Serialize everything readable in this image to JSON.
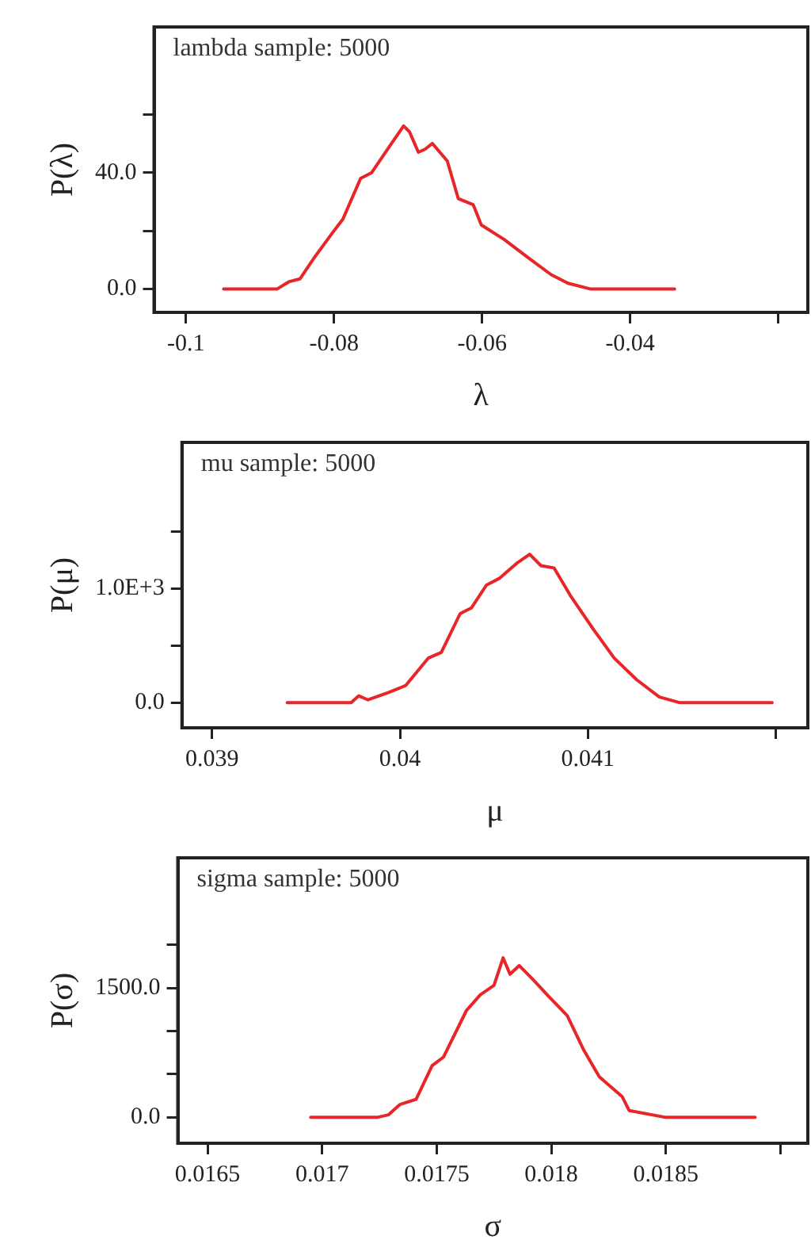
{
  "chart_data": [
    {
      "type": "line",
      "title": "lambda sample: 5000",
      "xlabel": "λ",
      "ylabel": "P(λ)",
      "xlim": [
        -0.1043,
        -0.016
      ],
      "ylim": [
        -8,
        90
      ],
      "xticks": [
        -0.1,
        -0.08,
        -0.06,
        -0.04,
        {
          "value": -0.02,
          "label": null
        }
      ],
      "yticks": [
        {
          "value": 0,
          "label": "0.0"
        },
        {
          "value": 20,
          "label": null
        },
        {
          "value": 40,
          "label": "40.0"
        },
        {
          "value": 60,
          "label": null
        }
      ],
      "grid": false,
      "legend": false,
      "marker": "none",
      "line_style": "solid",
      "series": [
        {
          "color": "#e8262a",
          "x": [
            -0.0949,
            -0.0877,
            -0.0861,
            -0.0846,
            -0.0826,
            -0.0803,
            -0.0788,
            -0.0764,
            -0.0749,
            -0.0725,
            -0.0706,
            -0.0698,
            -0.0686,
            -0.0677,
            -0.0667,
            -0.0647,
            -0.0632,
            -0.0612,
            -0.0601,
            -0.057,
            -0.0539,
            -0.0507,
            -0.0484,
            -0.0453,
            -0.034
          ],
          "values": [
            0,
            0,
            2.5,
            3.5,
            11,
            19,
            24,
            38,
            40,
            49,
            56,
            54,
            47,
            48,
            50,
            44,
            31,
            29,
            22,
            17,
            11,
            5,
            2,
            0,
            0
          ]
        }
      ]
    },
    {
      "type": "line",
      "title": "mu sample: 5000",
      "xlabel": "μ",
      "ylabel": "P(μ)",
      "xlim": [
        0.03884,
        0.04217
      ],
      "ylim": [
        -220,
        2280
      ],
      "xticks": [
        0.039,
        0.04,
        0.041,
        {
          "value": 0.042,
          "label": null
        }
      ],
      "yticks": [
        {
          "value": 0,
          "label": "0.0"
        },
        {
          "value": 500,
          "label": null
        },
        {
          "value": 1000,
          "label": "1.0E+3"
        },
        {
          "value": 1500,
          "label": null
        }
      ],
      "grid": false,
      "legend": false,
      "marker": "none",
      "line_style": "solid",
      "series": [
        {
          "color": "#e8262a",
          "x": [
            0.0394,
            0.03974,
            0.03978,
            0.03983,
            0.03994,
            0.04003,
            0.04015,
            0.04022,
            0.04032,
            0.04038,
            0.04046,
            0.04053,
            0.04062,
            0.04069,
            0.04075,
            0.04082,
            0.04091,
            0.04103,
            0.04114,
            0.04126,
            0.04138,
            0.04149,
            0.04198
          ],
          "values": [
            0,
            0,
            60,
            25,
            90,
            150,
            390,
            440,
            780,
            830,
            1030,
            1090,
            1220,
            1300,
            1200,
            1180,
            930,
            640,
            390,
            200,
            50,
            0,
            0
          ]
        }
      ]
    },
    {
      "type": "line",
      "title": "sigma sample: 5000",
      "xlabel": "σ",
      "ylabel": "P(σ)",
      "xlim": [
        0.01637,
        0.01912
      ],
      "ylim": [
        -300,
        3010
      ],
      "xticks": [
        0.0165,
        0.017,
        0.0175,
        0.018,
        0.0185,
        {
          "value": 0.019,
          "label": null
        }
      ],
      "yticks": [
        {
          "value": 0,
          "label": "0.0"
        },
        {
          "value": 500,
          "label": null
        },
        {
          "value": 1000,
          "label": null
        },
        {
          "value": 1500,
          "label": "1500.0"
        },
        {
          "value": 2000,
          "label": null
        }
      ],
      "grid": false,
      "legend": false,
      "marker": "none",
      "line_style": "solid",
      "series": [
        {
          "color": "#e8262a",
          "x": [
            0.01695,
            0.01724,
            0.01729,
            0.01734,
            0.01741,
            0.01748,
            0.01753,
            0.01763,
            0.01769,
            0.01775,
            0.01779,
            0.01782,
            0.01786,
            0.01792,
            0.01799,
            0.01807,
            0.01814,
            0.01821,
            0.01831,
            0.01834,
            0.0185,
            0.01889
          ],
          "values": [
            0,
            0,
            30,
            150,
            210,
            600,
            700,
            1240,
            1420,
            1530,
            1850,
            1660,
            1760,
            1600,
            1400,
            1180,
            790,
            470,
            240,
            80,
            0,
            0
          ]
        }
      ]
    }
  ]
}
